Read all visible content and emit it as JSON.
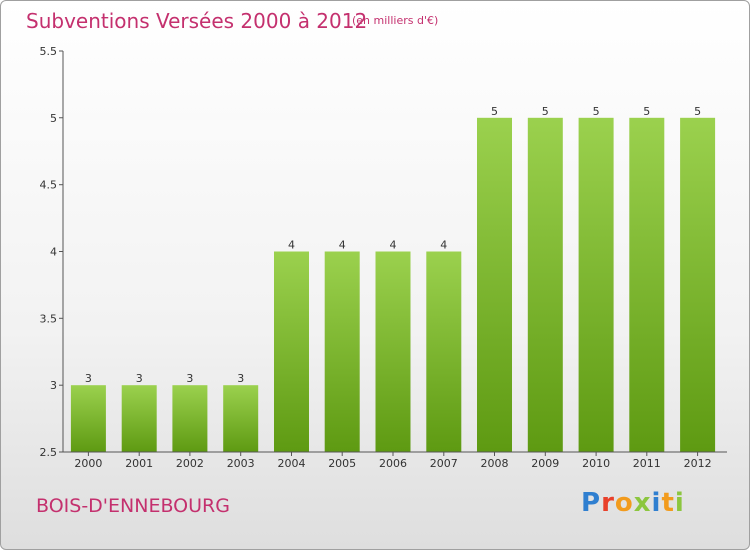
{
  "header": {
    "title": "Subventions Versées 2000 à 2012",
    "unit": "(en milliers d'€)"
  },
  "footer": {
    "commune": "BOIS-D'ENNEBOURG",
    "logo_text": "Proxiti",
    "logo_colors": [
      "#2f7fd0",
      "#e8402a",
      "#f29b1d",
      "#8cc63f",
      "#2f7fd0",
      "#f29b1d",
      "#8cc63f"
    ]
  },
  "chart_data": {
    "type": "bar",
    "title": "Subventions Versées 2000 à 2012",
    "subtitle": "(en milliers d'€)",
    "categories": [
      "2000",
      "2001",
      "2002",
      "2003",
      "2004",
      "2005",
      "2006",
      "2007",
      "2008",
      "2009",
      "2010",
      "2011",
      "2012"
    ],
    "values": [
      3,
      3,
      3,
      3,
      4,
      4,
      4,
      4,
      5,
      5,
      5,
      5,
      5
    ],
    "value_labels": [
      "3",
      "3",
      "3",
      "3",
      "4",
      "4",
      "4",
      "4",
      "5",
      "5",
      "5",
      "5",
      "5"
    ],
    "ylim": [
      2.5,
      5.5
    ],
    "yticks": [
      2.5,
      3,
      3.5,
      4,
      4.5,
      5,
      5.5
    ],
    "ytick_labels": [
      "2.5",
      "3",
      "3.5",
      "4",
      "4.5",
      "5",
      "5.5"
    ],
    "grid": false,
    "legend": "none",
    "bar_color_top": "#9bd14e",
    "bar_color_bottom": "#5e9a12",
    "axis_color": "#555555"
  }
}
